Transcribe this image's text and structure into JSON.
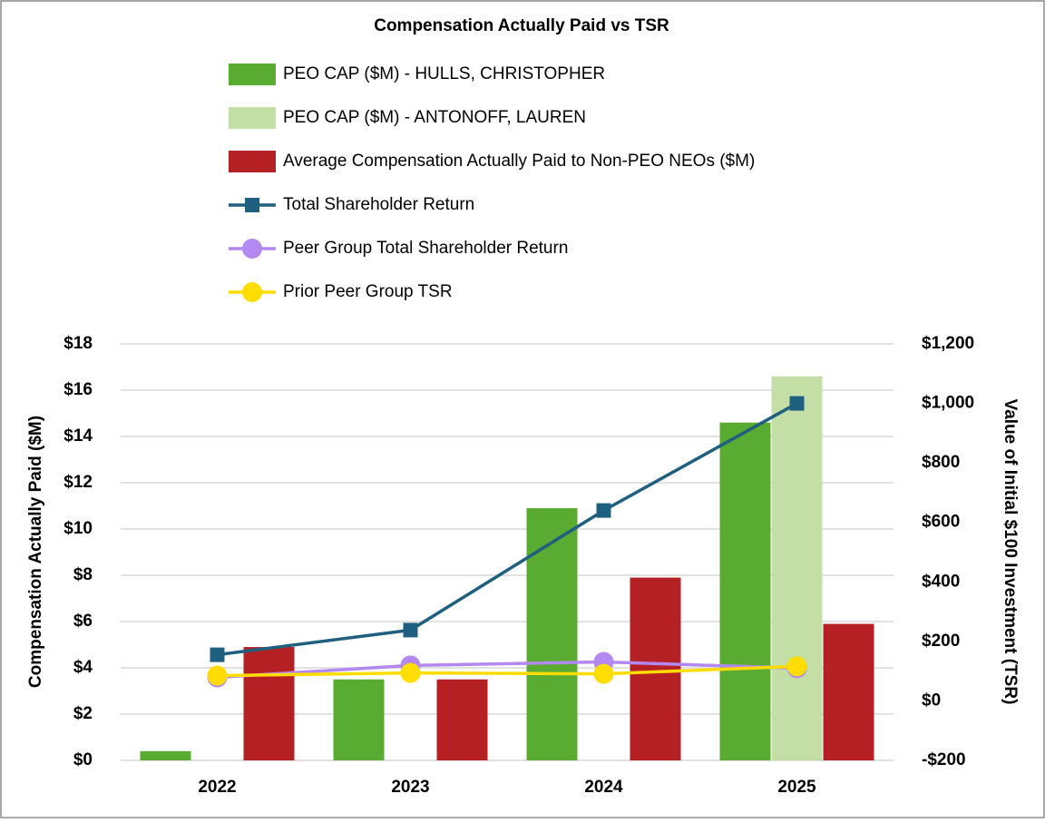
{
  "chart_data": {
    "type": "combo",
    "title": "Compensation Actually Paid vs TSR",
    "categories": [
      "2022",
      "2023",
      "2024",
      "2025"
    ],
    "series": [
      {
        "name": "PEO CAP ($M) - HULLS, CHRISTOPHER",
        "type": "bar",
        "axis": "y",
        "color": "#5aab32",
        "values": [
          0.4,
          3.5,
          10.9,
          14.6
        ]
      },
      {
        "name": "PEO CAP ($M) - ANTONOFF, LAUREN",
        "type": "bar",
        "axis": "y",
        "color": "#c3dfa6",
        "values": [
          null,
          null,
          null,
          16.6
        ]
      },
      {
        "name": "Average Compensation Actually Paid to Non-PEO NEOs ($M)",
        "type": "bar",
        "axis": "y",
        "color": "#b52025",
        "values": [
          4.9,
          3.5,
          7.9,
          5.9
        ]
      },
      {
        "name": "Total Shareholder Return",
        "type": "line",
        "marker": "square",
        "axis": "y2",
        "color": "#1f5f7f",
        "values": [
          155,
          238,
          640,
          1000
        ]
      },
      {
        "name": "Peer Group Total Shareholder Return",
        "type": "line",
        "marker": "circle",
        "axis": "y2",
        "color": "#b388f0",
        "values": [
          79,
          119,
          131,
          110
        ]
      },
      {
        "name": "Prior Peer Group TSR",
        "type": "line",
        "marker": "circle",
        "axis": "y2",
        "color": "#ffdd00",
        "values": [
          85,
          94,
          91,
          116
        ]
      }
    ],
    "ylabel": "Compensation Actually Paid ($M)",
    "y2label": "Value of Initial $100 Investment (TSR)",
    "ylim": [
      0,
      18
    ],
    "yticks": [
      {
        "value": 0,
        "label": "$0"
      },
      {
        "value": 2,
        "label": "$2"
      },
      {
        "value": 4,
        "label": "$4"
      },
      {
        "value": 6,
        "label": "$6"
      },
      {
        "value": 8,
        "label": "$8"
      },
      {
        "value": 10,
        "label": "$10"
      },
      {
        "value": 12,
        "label": "$12"
      },
      {
        "value": 14,
        "label": "$14"
      },
      {
        "value": 16,
        "label": "$16"
      },
      {
        "value": 18,
        "label": "$18"
      }
    ],
    "y2lim": [
      -200,
      1200
    ],
    "y2ticks": [
      {
        "value": -200,
        "label": "-$200"
      },
      {
        "value": 0,
        "label": "$0"
      },
      {
        "value": 200,
        "label": "$200"
      },
      {
        "value": 400,
        "label": "$400"
      },
      {
        "value": 600,
        "label": "$600"
      },
      {
        "value": 800,
        "label": "$800"
      },
      {
        "value": 1000,
        "label": "$1,000"
      },
      {
        "value": 1200,
        "label": "$1,200"
      }
    ],
    "grid": true,
    "legend": "top"
  }
}
